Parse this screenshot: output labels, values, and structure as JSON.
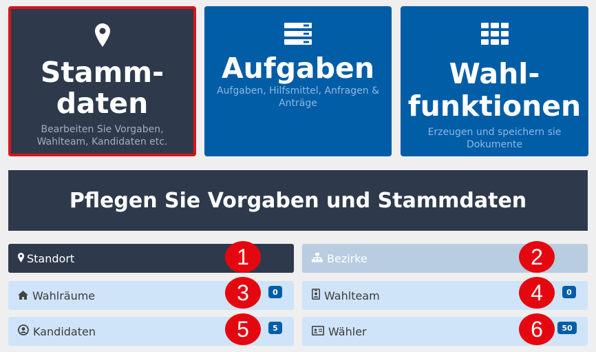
{
  "tiles": {
    "stammdaten": {
      "title_1": "Stamm-",
      "title_2": "daten",
      "sub_1": "Bearbeiten Sie Vorgaben,",
      "sub_2": "Wahlteam, Kandidaten etc."
    },
    "aufgaben": {
      "title": "Aufgaben",
      "sub_1": "Aufgaben, Hilfsmittel, Anfragen &",
      "sub_2": "Anträge"
    },
    "wahlfunktionen": {
      "title_1": "Wahl-",
      "title_2": "funktionen",
      "sub_1": "Erzeugen und speichern sie",
      "sub_2": "Dokumente"
    }
  },
  "banner": {
    "title": "Pflegen Sie Vorgaben und Stammdaten"
  },
  "nav": [
    {
      "label": "Standort",
      "icon": "map-marker-icon",
      "number": "1"
    },
    {
      "label": "Bezirke",
      "icon": "sitemap-icon",
      "number": "2"
    },
    {
      "label": "Wahlräume",
      "icon": "home-icon",
      "badge": "0",
      "number": "3"
    },
    {
      "label": "Wahlteam",
      "icon": "id-badge-icon",
      "badge": "0",
      "number": "4"
    },
    {
      "label": "Kandidaten",
      "icon": "user-circle-icon",
      "badge": "5",
      "number": "5"
    },
    {
      "label": "Wähler",
      "icon": "id-card-icon",
      "badge": "50",
      "number": "6"
    }
  ],
  "colors": {
    "dark": "#2e3a4b",
    "primary": "#005da6",
    "light": "#cfe4f8",
    "highlight": "#d8141b",
    "marker": "#e5070f"
  }
}
